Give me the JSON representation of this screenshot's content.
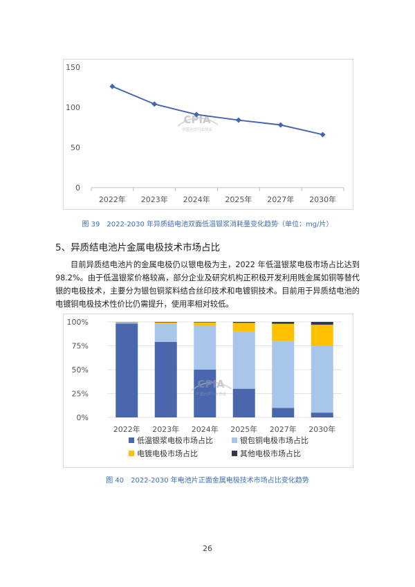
{
  "chart_data": [
    {
      "type": "line",
      "title": "",
      "xlabel": "",
      "ylabel": "",
      "categories": [
        "2022年",
        "2023年",
        "2024年",
        "2025年",
        "2027年",
        "2030年"
      ],
      "values": [
        126,
        104,
        91,
        84,
        78,
        66
      ],
      "yticks": [
        "0",
        "50",
        "100",
        "150"
      ],
      "ylim": [
        0,
        150
      ],
      "grid": false,
      "color": "#4466b0"
    },
    {
      "type": "bar",
      "stacked": true,
      "title": "",
      "xlabel": "",
      "ylabel": "",
      "categories": [
        "2022年",
        "2023年",
        "2024年",
        "2025年",
        "2027年",
        "2030年"
      ],
      "yticks": [
        "0%",
        "25%",
        "50%",
        "75%",
        "100%"
      ],
      "ylim": [
        0,
        100
      ],
      "grid": true,
      "legend_position": "bottom",
      "series": [
        {
          "name": "低温银浆电极市场占比",
          "color": "#4a66ad",
          "values": [
            98.2,
            79,
            50,
            30,
            10,
            5
          ]
        },
        {
          "name": "银包铜电极市场占比",
          "color": "#a8c6ea",
          "values": [
            1.3,
            19,
            46,
            60,
            70,
            70
          ]
        },
        {
          "name": "电镀电极市场占比",
          "color": "#ffc000",
          "values": [
            0.3,
            1.5,
            3.5,
            9,
            18,
            22
          ]
        },
        {
          "name": "其他电极市场占比",
          "color": "#2f3a4f",
          "values": [
            0.2,
            0.5,
            0.5,
            1,
            2,
            3
          ]
        }
      ]
    }
  ],
  "watermark": {
    "text": "CPIA",
    "subtext": "中国光伏行业协会"
  },
  "captions": {
    "fig39": "图 39　2022-2030 年异质结电池双面低温银浆消耗量变化趋势（单位：mg/片）",
    "fig40": "图 40　2022-2030 年电池片正面金属电极技术市场占比变化趋势"
  },
  "section": {
    "heading": "5、异质结电池片金属电极技术市场占比",
    "paragraph": "目前异质结电池片的金属电极仍以银电极为主，2022 年低温银浆电极市场占比达到 98.2%。由于低温银浆价格较高，部分企业及研究机构正积极开发利用贱金属如铜等替代银的电极技术，主要分为银包铜浆料结合丝印技术和电镀铜技术。目前用于异质结电池的电镀铜电极技术性价比仍需提升，使用率相对较低。"
  },
  "page_number": "26"
}
